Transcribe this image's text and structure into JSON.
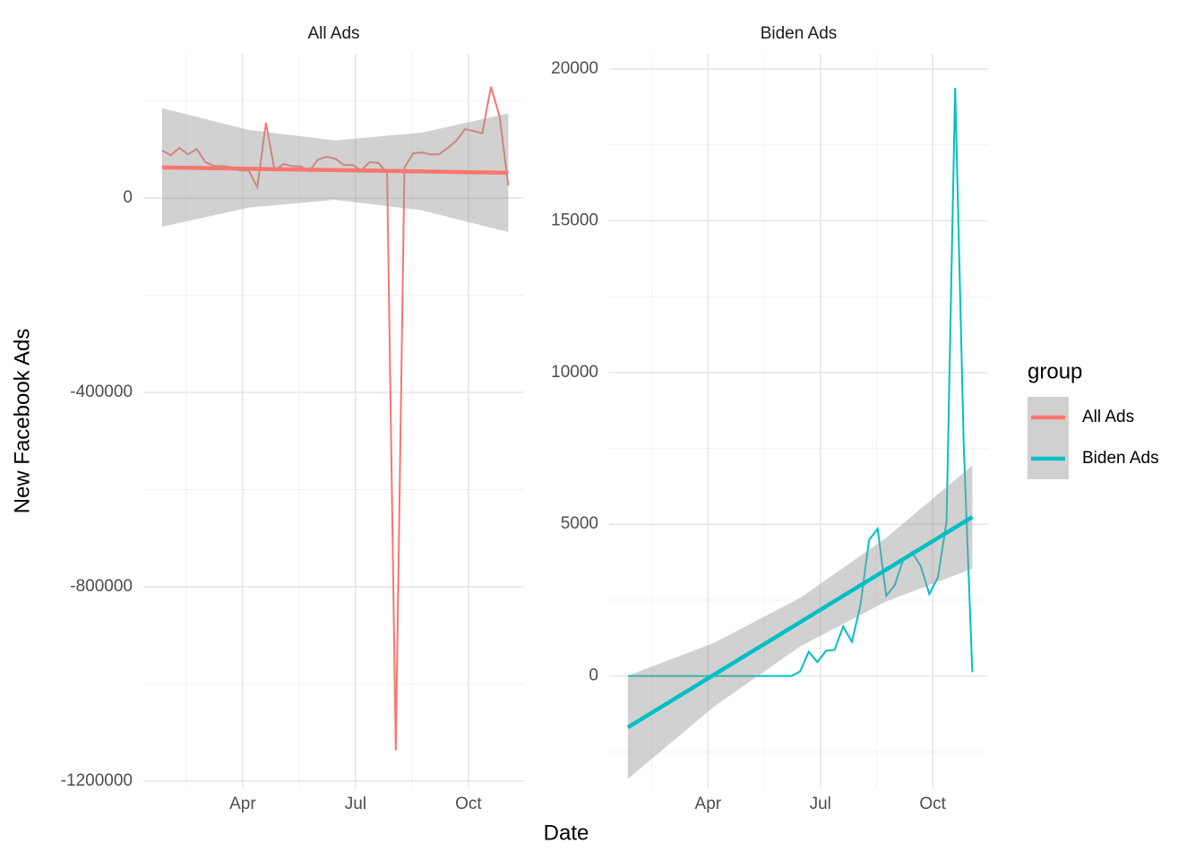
{
  "chart_data": {
    "type": "line",
    "xlabel": "Date",
    "ylabel": "New Facebook Ads",
    "legend_title": "group",
    "legend": "right",
    "grid": true,
    "x": [
      1.86,
      2.09,
      2.32,
      2.55,
      2.78,
      3.01,
      3.24,
      3.47,
      3.7,
      3.93,
      4.16,
      4.39,
      4.62,
      4.85,
      5.08,
      5.31,
      5.54,
      5.77,
      6.0,
      6.23,
      6.46,
      6.69,
      6.92,
      7.15,
      7.38,
      7.61,
      7.84,
      8.07,
      8.3,
      8.53,
      8.76,
      8.99,
      9.22,
      9.45,
      9.68,
      9.91,
      10.14,
      10.37,
      10.6,
      10.83,
      11.06
    ],
    "xlim": [
      1.36,
      11.48
    ],
    "xticks": [
      {
        "value": 4,
        "label": "Apr"
      },
      {
        "value": 7,
        "label": "Jul"
      },
      {
        "value": 10,
        "label": "Oct"
      }
    ],
    "panels": [
      {
        "ylim": [
          -1215000,
          297000
        ],
        "yticks": [
          -1200000,
          -800000,
          -400000,
          0
        ],
        "series": [
          {
            "name": "All Ads",
            "color": "#F8766D",
            "values": [
              98000,
              88000,
              103000,
              90000,
              101000,
              74000,
              66000,
              66000,
              63000,
              57000,
              57000,
              22000,
              155000,
              57000,
              70000,
              66000,
              65000,
              55000,
              79000,
              85000,
              81000,
              68000,
              68000,
              57000,
              74000,
              72000,
              52000,
              -1137000,
              63000,
              92000,
              94000,
              90000,
              90000,
              103000,
              118000,
              142000,
              138000,
              133000,
              229000,
              168000,
              26000
            ],
            "fit": {
              "x": [
                1.86,
                4.16,
                6.46,
                8.76,
                11.06
              ],
              "values": [
                63000,
                60250,
                57500,
                54750,
                52000
              ],
              "upper": [
                185000,
                140250,
                118500,
                134750,
                174000
              ],
              "lower": [
                -59000,
                -19750,
                -3500,
                -25250,
                -70000
              ]
            }
          }
        ]
      },
      {
        "ylim": [
          -3700,
          20500
        ],
        "yticks": [
          0,
          5000,
          10000,
          15000,
          20000
        ],
        "series": [
          {
            "name": "Biden Ads",
            "color": "#00BFC4",
            "values": [
              0,
              0,
              0,
              0,
              0,
              0,
              0,
              0,
              0,
              0,
              0,
              0,
              0,
              0,
              0,
              0,
              0,
              0,
              0,
              0,
              150,
              800,
              460,
              830,
              860,
              1630,
              1130,
              2330,
              4480,
              4850,
              2640,
              3000,
              3860,
              4080,
              3620,
              2700,
              3250,
              5090,
              19380,
              7600,
              120
            ],
            "fit": {
              "x": [
                1.86,
                4.16,
                6.46,
                8.76,
                11.06
              ],
              "values": [
                -1690,
                42,
                1775,
                3507,
                5240
              ],
              "upper": [
                10,
                1092,
                2575,
                4557,
                6940
              ],
              "lower": [
                -3390,
                -1008,
                975,
                2457,
                3540
              ]
            }
          }
        ]
      }
    ]
  }
}
